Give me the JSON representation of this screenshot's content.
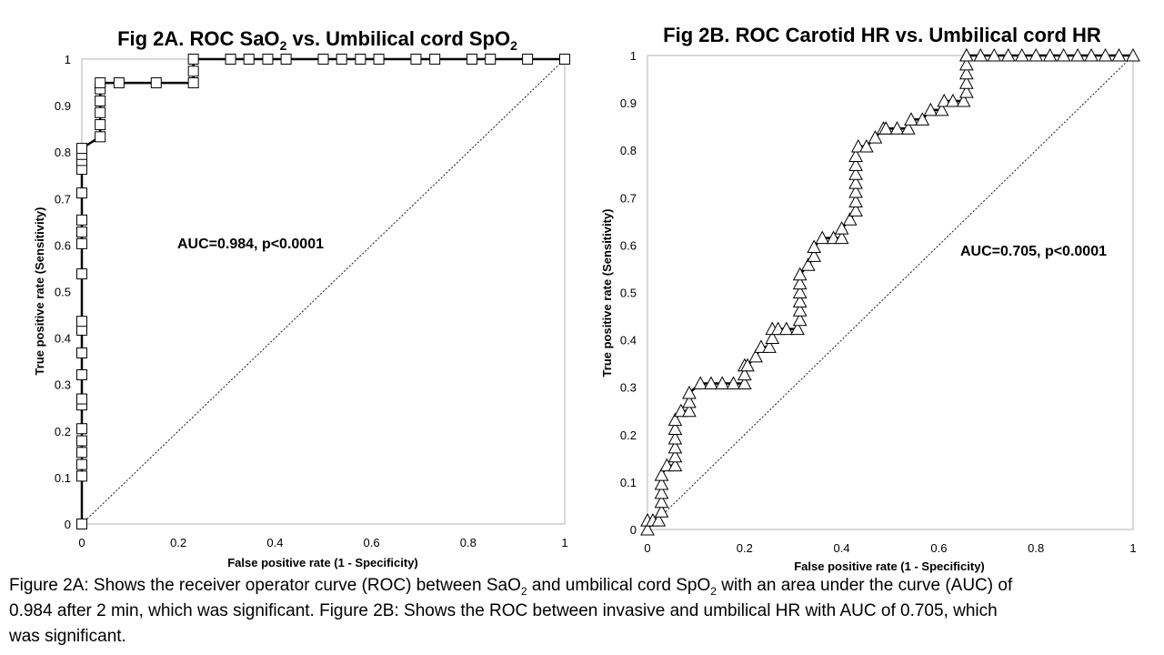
{
  "chart_data": [
    {
      "type": "line",
      "title_parts": [
        "Fig 2A. ROC SaO",
        "2",
        " vs. Umbilical cord SpO",
        "2"
      ],
      "xlabel": "False positive rate (1 - Specificity)",
      "ylabel": "True positive rate (Sensitivity)",
      "xlim": [
        0,
        1
      ],
      "ylim": [
        0,
        1
      ],
      "xticks": [
        "0",
        "0.2",
        "0.4",
        "0.6",
        "0.8",
        "1"
      ],
      "xtick_values": [
        0,
        0.2,
        0.4,
        0.6,
        0.8,
        1
      ],
      "yticks": [
        "0",
        "0.1",
        "0.2",
        "0.3",
        "0.4",
        "0.5",
        "0.6",
        "0.7",
        "0.8",
        "0.9",
        "1"
      ],
      "ytick_values": [
        0,
        0.1,
        0.2,
        0.3,
        0.4,
        0.5,
        0.6,
        0.7,
        0.8,
        0.9,
        1
      ],
      "grid": false,
      "marker": "square",
      "annotation": "AUC=0.984, p<0.0001",
      "series": [
        {
          "x": [
            0,
            0,
            0,
            0,
            0,
            0,
            0,
            0,
            0,
            0,
            0,
            0,
            0,
            0,
            0,
            0,
            0,
            0,
            0,
            0,
            0,
            0.038,
            0.038,
            0.038,
            0.038,
            0.038,
            0.038,
            0.077,
            0.154,
            0.231,
            0.231,
            0.231,
            0.308,
            0.346,
            0.385,
            0.423,
            0.5,
            0.538,
            0.577,
            0.615,
            0.692,
            0.731,
            0.808,
            0.846,
            0.923,
            1
          ],
          "y": [
            0,
            0.103,
            0.128,
            0.154,
            0.179,
            0.205,
            0.256,
            0.269,
            0.321,
            0.368,
            0.417,
            0.436,
            0.538,
            0.603,
            0.628,
            0.654,
            0.712,
            0.763,
            0.782,
            0.795,
            0.808,
            0.833,
            0.859,
            0.885,
            0.91,
            0.936,
            0.949,
            0.949,
            0.949,
            0.949,
            0.974,
            1,
            1,
            1,
            1,
            1,
            1,
            1,
            1,
            1,
            1,
            1,
            1,
            1,
            1,
            1
          ]
        }
      ],
      "reference_line": [
        [
          0,
          0
        ],
        [
          1,
          1
        ]
      ]
    },
    {
      "type": "line",
      "title_parts": [
        "Fig 2B. ROC Carotid HR vs. Umbilical cord HR"
      ],
      "xlabel": "False positive rate (1 - Specificity)",
      "ylabel": "True positive rate (Sensitivity)",
      "xlim": [
        0,
        1
      ],
      "ylim": [
        0,
        1
      ],
      "xticks": [
        "0",
        "0.2",
        "0.4",
        "0.6",
        "0.8",
        "1"
      ],
      "xtick_values": [
        0,
        0.2,
        0.4,
        0.6,
        0.8,
        1
      ],
      "yticks": [
        "0",
        "0.1",
        "0.2",
        "0.3",
        "0.4",
        "0.5",
        "0.6",
        "0.7",
        "0.8",
        "0.9",
        "1"
      ],
      "ytick_values": [
        0,
        0.1,
        0.2,
        0.3,
        0.4,
        0.5,
        0.6,
        0.7,
        0.8,
        0.9,
        1
      ],
      "grid": false,
      "marker": "triangle",
      "annotation": "AUC=0.705, p<0.0001",
      "series": [
        {
          "x": [
            0,
            0,
            0.011,
            0.023,
            0.029,
            0.029,
            0.029,
            0.029,
            0.029,
            0.04,
            0.057,
            0.057,
            0.057,
            0.057,
            0.057,
            0.057,
            0.069,
            0.086,
            0.086,
            0.086,
            0.109,
            0.131,
            0.154,
            0.177,
            0.2,
            0.2,
            0.2,
            0.206,
            0.223,
            0.234,
            0.251,
            0.257,
            0.257,
            0.269,
            0.286,
            0.309,
            0.314,
            0.314,
            0.314,
            0.314,
            0.314,
            0.314,
            0.331,
            0.343,
            0.343,
            0.36,
            0.383,
            0.4,
            0.4,
            0.417,
            0.429,
            0.429,
            0.429,
            0.429,
            0.429,
            0.429,
            0.429,
            0.434,
            0.451,
            0.469,
            0.486,
            0.491,
            0.514,
            0.537,
            0.543,
            0.566,
            0.583,
            0.606,
            0.611,
            0.629,
            0.651,
            0.657,
            0.657,
            0.657,
            0.657,
            0.657,
            0.657,
            0.686,
            0.714,
            0.743,
            0.771,
            0.8,
            0.829,
            0.857,
            0.886,
            0.914,
            0.943,
            0.971,
            1
          ],
          "y": [
            0,
            0.019,
            0.019,
            0.019,
            0.038,
            0.058,
            0.077,
            0.096,
            0.115,
            0.135,
            0.135,
            0.154,
            0.173,
            0.192,
            0.212,
            0.231,
            0.25,
            0.25,
            0.269,
            0.288,
            0.308,
            0.308,
            0.308,
            0.308,
            0.308,
            0.327,
            0.346,
            0.346,
            0.365,
            0.385,
            0.385,
            0.404,
            0.423,
            0.423,
            0.423,
            0.423,
            0.442,
            0.462,
            0.481,
            0.5,
            0.519,
            0.538,
            0.558,
            0.577,
            0.596,
            0.615,
            0.615,
            0.615,
            0.635,
            0.654,
            0.673,
            0.692,
            0.712,
            0.731,
            0.75,
            0.769,
            0.788,
            0.808,
            0.808,
            0.827,
            0.846,
            0.846,
            0.846,
            0.846,
            0.865,
            0.865,
            0.885,
            0.885,
            0.904,
            0.904,
            0.904,
            0.923,
            0.942,
            0.962,
            0.981,
            1,
            1,
            1,
            1,
            1,
            1,
            1,
            1,
            1,
            1,
            1,
            1,
            1,
            1
          ]
        }
      ],
      "reference_line": [
        [
          0,
          0
        ],
        [
          1,
          1
        ]
      ]
    }
  ],
  "caption": {
    "line1_parts": [
      "Figure 2A: Shows the receiver operator curve (ROC) between SaO",
      "2",
      " and umbilical cord SpO",
      "2",
      " with an area under the curve (AUC) of"
    ],
    "line2": "0.984 after 2 min, which was significant. Figure 2B: Shows the ROC between invasive and umbilical HR with AUC of 0.705, which",
    "line3": "was significant."
  }
}
